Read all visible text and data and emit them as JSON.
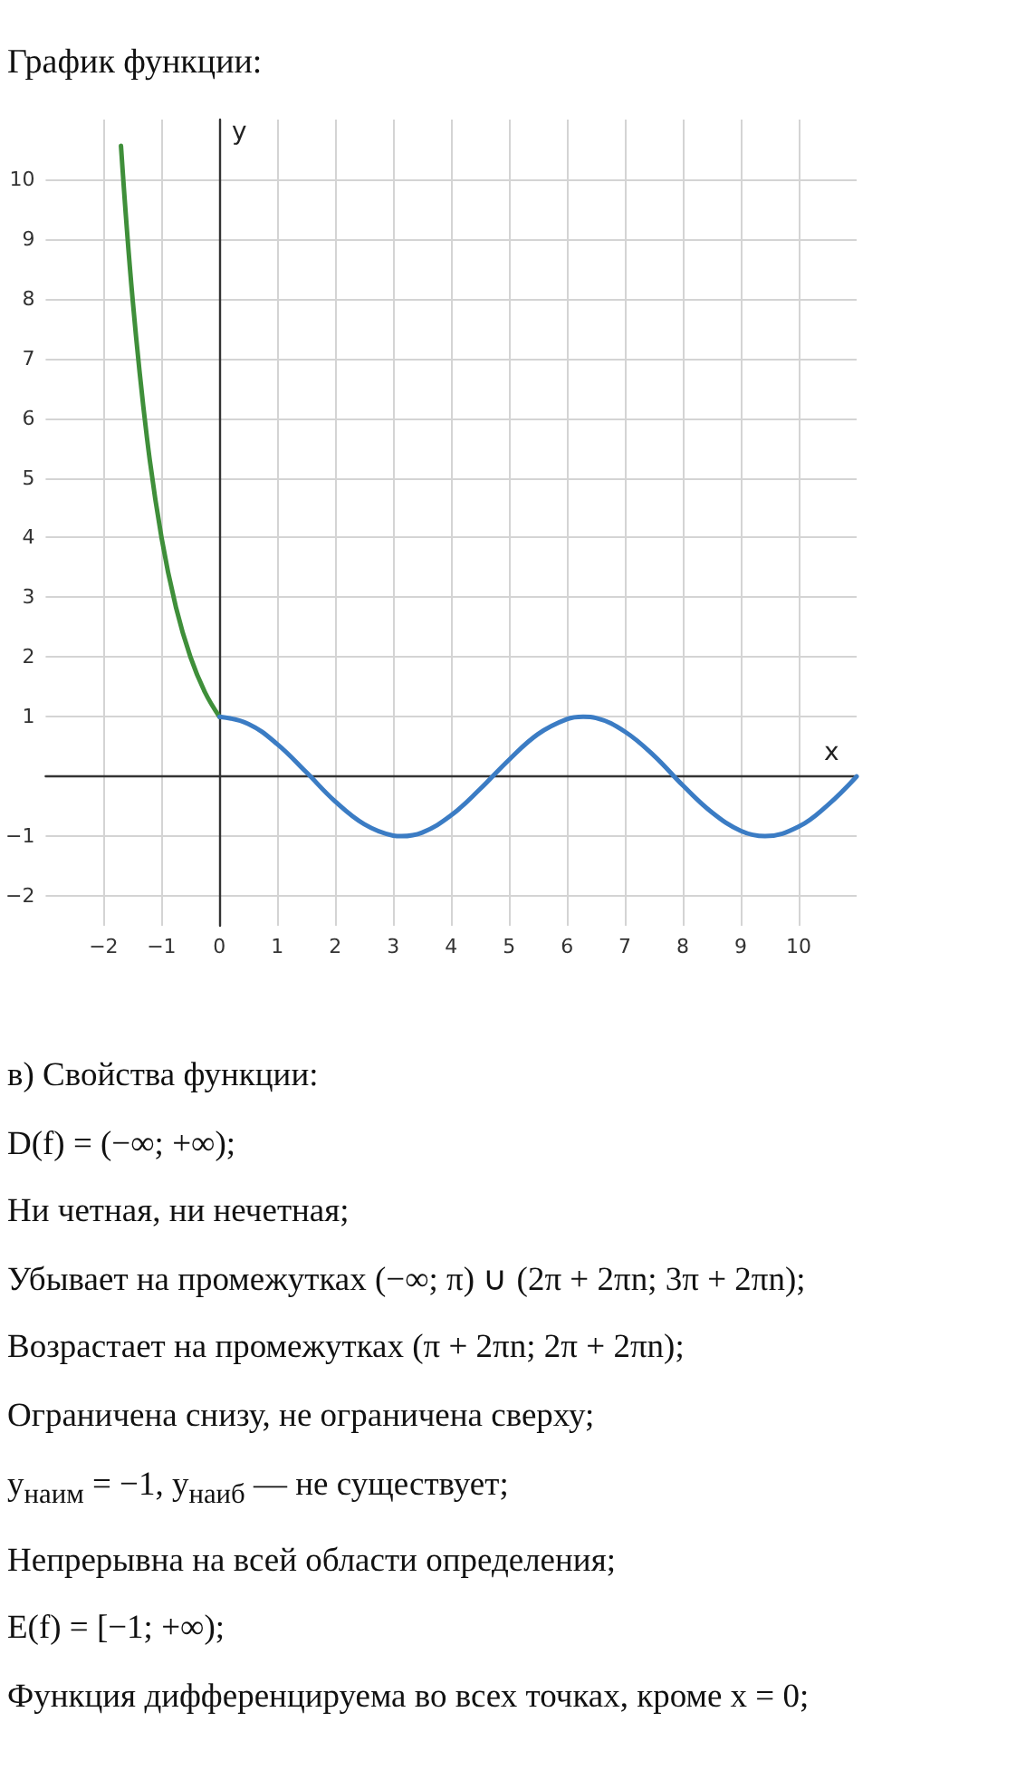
{
  "chart_data": {
    "type": "line",
    "title": "График функции:",
    "xlabel": "x",
    "ylabel": "y",
    "series": [
      {
        "color": "#3f8f3a",
        "x": [
          -1.7,
          -1.5,
          -1.25,
          -1,
          -0.75,
          -0.5,
          -0.25,
          0
        ],
        "values": [
          10.56,
          8,
          5.66,
          4,
          2.83,
          2,
          1.41,
          1
        ]
      },
      {
        "color": "#3b7cc4",
        "x": [
          0,
          0.5,
          1,
          1.5,
          2,
          2.5,
          3,
          3.14,
          3.5,
          4,
          4.5,
          5,
          5.5,
          6,
          6.28,
          6.5,
          7,
          7.5,
          8,
          8.5,
          9,
          9.42,
          10,
          10.5,
          11
        ],
        "values": [
          1,
          0.88,
          0.54,
          0.07,
          -0.42,
          -0.8,
          -0.99,
          -1,
          -0.94,
          -0.65,
          -0.21,
          0.28,
          0.71,
          0.96,
          1,
          0.98,
          0.75,
          0.35,
          -0.15,
          -0.6,
          -0.91,
          -1,
          -0.84,
          -0.48,
          0
        ]
      }
    ],
    "xlim": [
      -3,
      11
    ],
    "ylim": [
      -2.5,
      11
    ],
    "xticks": [
      -2,
      -1,
      0,
      1,
      2,
      3,
      4,
      5,
      6,
      7,
      8,
      9,
      10
    ],
    "yticks": [
      -2,
      -1,
      1,
      2,
      3,
      4,
      5,
      6,
      7,
      8,
      9,
      10
    ],
    "grid": true,
    "marker": "none",
    "line_style": "solid",
    "annotations": [
      "в) Свойства функции:",
      "D(f) = (−∞; +∞);",
      "Ни четная, ни нечетная;",
      "Убывает на промежутках (−∞; π) ∪ (2π + 2πn; 3π + 2πn);",
      "Возрастает на промежутках (π + 2πn; 2π + 2πn);",
      "Ограничена снизу, не ограничена сверху;",
      "y$_{наим}$ = −1, y$_{наиб}$ — не существует;",
      "Непрерывна на всей области определения;",
      "E(f) = [−1; +∞);",
      "Функция дифференцируема во всех точках, кроме x = 0;"
    ]
  }
}
